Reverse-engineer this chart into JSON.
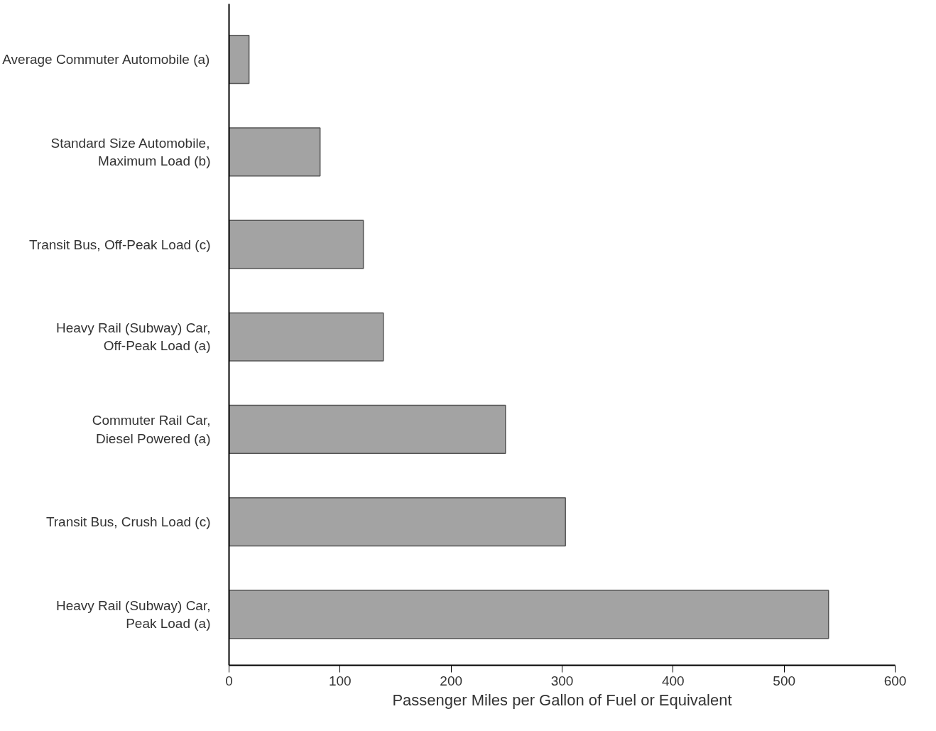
{
  "chart_data": {
    "type": "bar",
    "orientation": "horizontal",
    "xlabel": "Passenger Miles per Gallon of Fuel or Equivalent",
    "categories": [
      "Average Commuter Automobile (a)",
      "Standard Size Automobile,\nMaximum Load (b)",
      "Transit Bus, Off-Peak Load (c)",
      "Heavy Rail (Subway) Car,\nOff-Peak Load (a)",
      "Commuter Rail Car,\nDiesel Powered (a)",
      "Transit Bus, Crush Load (c)",
      "Heavy Rail (Subway) Car,\nPeak Load (a)"
    ],
    "values": [
      18,
      82,
      121,
      139,
      249,
      303,
      540
    ],
    "color": "#a3a3a3",
    "xlim": [
      0,
      600
    ],
    "xticks": [
      0,
      100,
      200,
      300,
      400,
      500,
      600
    ],
    "grid": false
  }
}
